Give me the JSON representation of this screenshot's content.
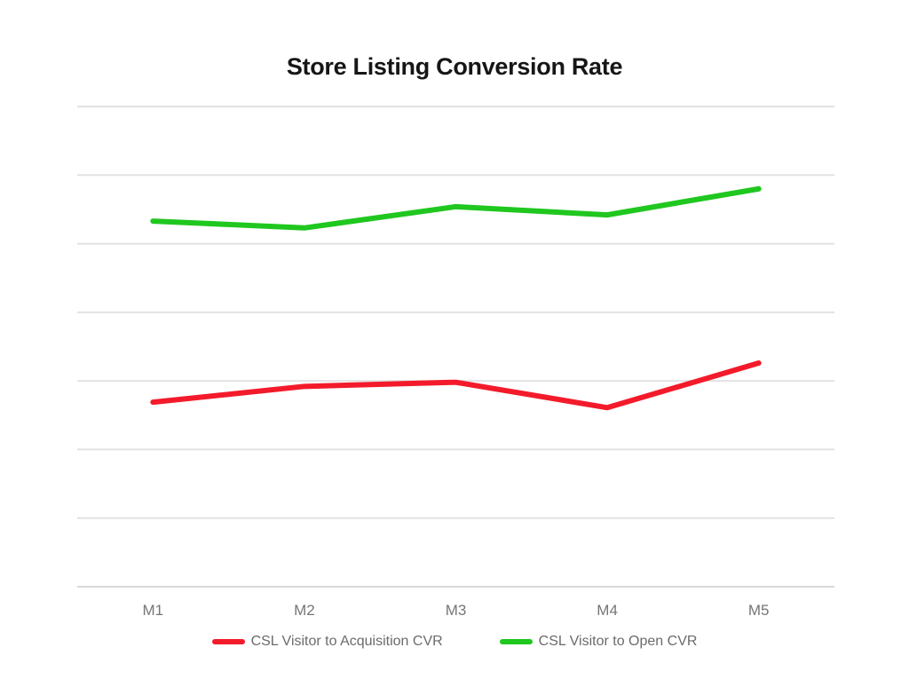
{
  "chart_data": {
    "type": "line",
    "title": "Store Listing Conversion Rate",
    "categories": [
      "M1",
      "M2",
      "M3",
      "M4",
      "M5"
    ],
    "series": [
      {
        "name": "CSL Visitor to Acquisition CVR",
        "color": "#f31b2b",
        "values": [
          2.69,
          2.92,
          2.98,
          2.61,
          3.26
        ]
      },
      {
        "name": "CSL Visitor to Open CVR",
        "color": "#1fc71f",
        "values": [
          5.33,
          5.23,
          5.54,
          5.42,
          5.8
        ]
      }
    ],
    "xlabel": "",
    "ylabel": "",
    "ylim": [
      0,
      7
    ],
    "y_gridline_step": 1,
    "y_tick_labels_visible": false,
    "grid": true,
    "legend_position": "bottom",
    "background_color": "#ffffff",
    "gridline_color": "#e2e2e2"
  }
}
